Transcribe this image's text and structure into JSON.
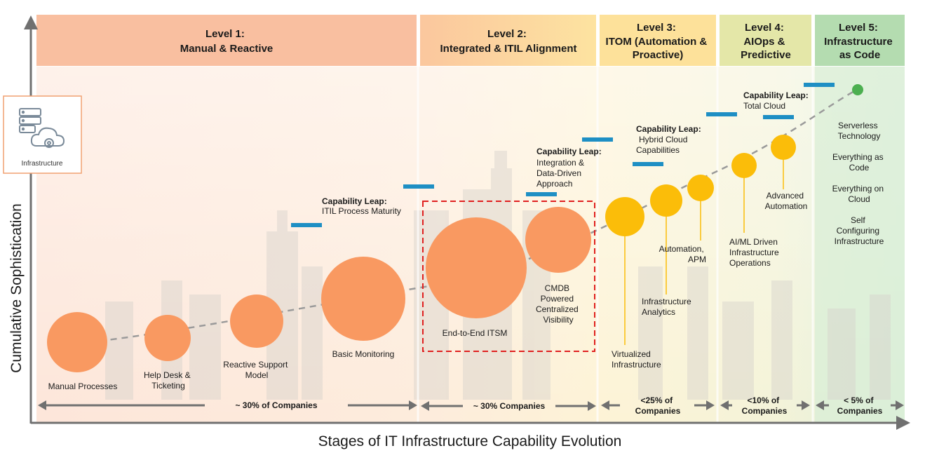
{
  "levels": [
    {
      "line1": "Level 1:",
      "line2": "Manual & Reactive",
      "line3": "",
      "color": "#f9bfa0"
    },
    {
      "line1": "Level 2:",
      "line2": "Integrated & ITIL Alignment",
      "line3": "",
      "color": "#fbd7a0"
    },
    {
      "line1": "Level 3:",
      "line2": "ITOM (Automation &",
      "line3": "Proactive)",
      "color": "#fbe296"
    },
    {
      "line1": "Level 4:",
      "line2": "AIOps &",
      "line3": "Predictive",
      "color": "#dfe6a8"
    },
    {
      "line1": "Level 5:",
      "line2": "Infrastructure",
      "line3": "as Code",
      "color": "#b5ddb0"
    }
  ],
  "icon": {
    "label": "Infrastructure",
    "name": "infrastructure-cloud-icon"
  },
  "axes": {
    "y_title": "Cumulative Sophistication",
    "x_title": "Stages of IT Infrastructure Capability Evolution"
  },
  "stages": [
    {
      "lines": [
        "Manual Processes"
      ],
      "color": "#f99961"
    },
    {
      "lines": [
        "Help Desk &",
        "Ticketing"
      ],
      "color": "#f99961"
    },
    {
      "lines": [
        "Reactive Support",
        "Model"
      ],
      "color": "#f99961"
    },
    {
      "lines": [
        "Basic Monitoring"
      ],
      "color": "#f99961"
    },
    {
      "lines": [
        "End-to-End ITSM"
      ],
      "color": "#f99961"
    },
    {
      "lines": [
        "CMDB",
        "Powered",
        "Centralized",
        "Visibility"
      ],
      "color": "#f99961"
    },
    {
      "lines": [
        "Virtualized",
        "Infrastructure"
      ],
      "color": "#fbbd09"
    },
    {
      "lines": [
        "Infrastructure",
        "Analytics"
      ],
      "color": "#fbbd09"
    },
    {
      "lines": [
        "Automation,",
        "APM"
      ],
      "color": "#fbbd09"
    },
    {
      "lines": [
        "AI/ML Driven",
        "Infrastructure",
        "Operations"
      ],
      "color": "#fbbd09"
    },
    {
      "lines": [
        "Advanced",
        "Automation"
      ],
      "color": "#fbbd09"
    }
  ],
  "leaps": [
    {
      "title": "Capability Leap:",
      "lines": [
        "ITIL Process Maturity"
      ]
    },
    {
      "title": "Capability Leap:",
      "lines": [
        "Integration &",
        "Data-Driven",
        "Approach"
      ]
    },
    {
      "title": "Capability Leap:",
      "lines": [
        "Hybrid Cloud",
        "Capabilities"
      ]
    },
    {
      "title": "Capability Leap:",
      "lines": [
        "Total Cloud"
      ]
    }
  ],
  "level5_items": [
    [
      "Serverless",
      "Technology"
    ],
    [
      "Everything as",
      "Code"
    ],
    [
      "Everything on",
      "Cloud"
    ],
    [
      "Self",
      "Configuring",
      "Infrastructure"
    ]
  ],
  "adoption": [
    {
      "lines": [
        "~ 30% of Companies"
      ]
    },
    {
      "lines": [
        "~ 30% Companies"
      ]
    },
    {
      "lines": [
        "<25% of",
        "Companies"
      ]
    },
    {
      "lines": [
        "<10% of",
        "Companies"
      ]
    },
    {
      "lines": [
        "< 5% of",
        "Companies"
      ]
    }
  ],
  "colors": {
    "step_bar": "#1e8fc4",
    "endpoint": "#4caf50",
    "highlight_border": "#e02020",
    "axis": "#707070"
  }
}
